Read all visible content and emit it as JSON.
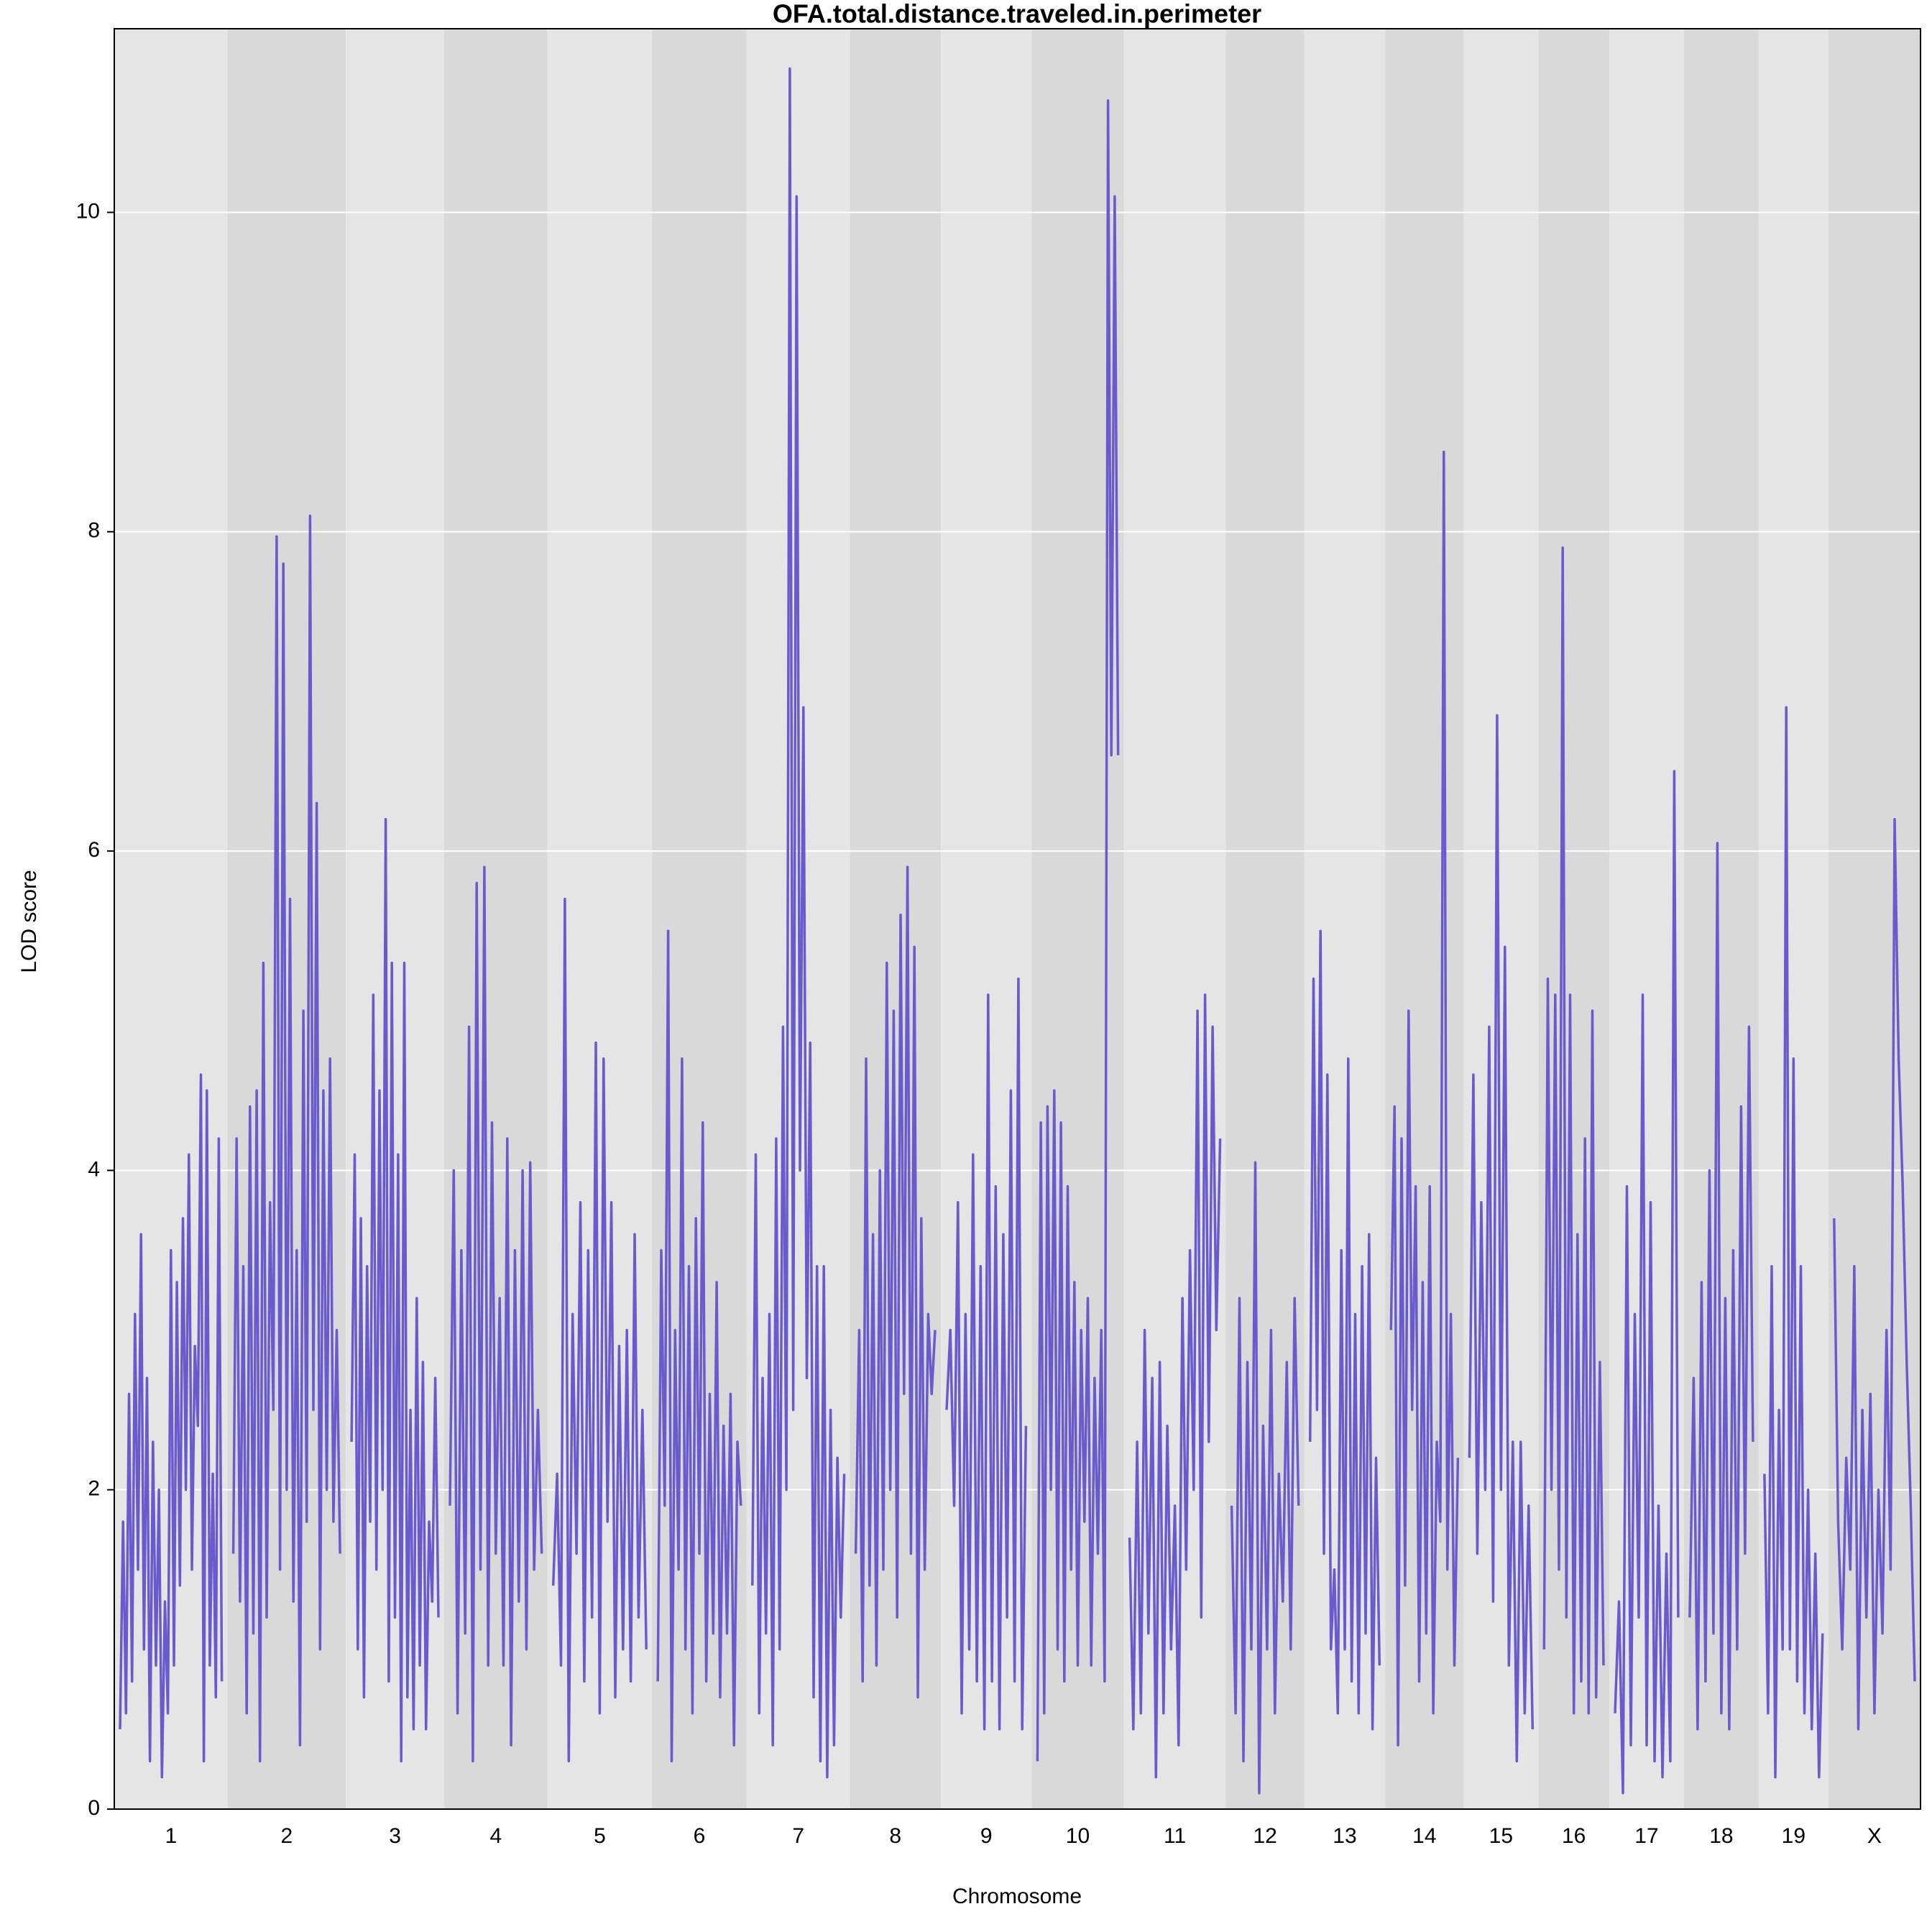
{
  "chart_data": {
    "type": "lod-scan",
    "title": "OFA.total.distance.traveled.in.perimeter",
    "xlabel": "Chromosome",
    "ylabel": "LOD score",
    "color": "#6a5acd",
    "grid": true,
    "ylim": [
      0,
      11.15
    ],
    "yticks": [
      0,
      2,
      4,
      6,
      8,
      10
    ],
    "chromosomes": [
      {
        "name": "1",
        "length": 91,
        "values": [
          0.5,
          1.8,
          0.6,
          2.6,
          0.8,
          3.1,
          1.5,
          3.6,
          1.0,
          2.7,
          0.3,
          2.3,
          0.9,
          2.0,
          0.2,
          1.3,
          0.6,
          3.5,
          0.9,
          3.3,
          1.4,
          3.7,
          2.0,
          4.1,
          1.5,
          2.9,
          2.4,
          4.6,
          0.3,
          4.5,
          0.9,
          2.1,
          0.7,
          4.2,
          0.8
        ]
      },
      {
        "name": "2",
        "length": 95,
        "values": [
          1.6,
          4.2,
          1.3,
          3.4,
          0.6,
          4.4,
          1.1,
          4.5,
          0.3,
          5.3,
          1.2,
          3.8,
          2.5,
          7.97,
          1.5,
          7.8,
          2.0,
          5.7,
          1.3,
          3.5,
          0.4,
          5.0,
          1.8,
          8.1,
          2.5,
          6.3,
          1.0,
          4.5,
          2.0,
          4.7,
          1.8,
          3.0,
          1.6
        ]
      },
      {
        "name": "3",
        "length": 79,
        "values": [
          2.3,
          4.1,
          1.0,
          3.7,
          0.7,
          3.4,
          1.8,
          5.1,
          1.5,
          4.5,
          2.0,
          6.2,
          0.8,
          5.3,
          1.2,
          4.1,
          0.3,
          5.3,
          0.7,
          2.5,
          0.5,
          3.2,
          0.9,
          2.8,
          0.5,
          1.8,
          1.3,
          2.7,
          1.2
        ]
      },
      {
        "name": "4",
        "length": 83,
        "values": [
          1.9,
          4.0,
          0.6,
          3.5,
          1.1,
          4.9,
          0.3,
          5.8,
          1.5,
          5.9,
          0.9,
          4.3,
          1.6,
          3.2,
          0.9,
          4.2,
          0.4,
          3.5,
          1.3,
          4.0,
          1.0,
          4.05,
          1.5,
          2.5,
          1.6
        ]
      },
      {
        "name": "5",
        "length": 84,
        "values": [
          1.4,
          2.1,
          0.9,
          5.7,
          0.3,
          3.1,
          1.6,
          3.8,
          0.8,
          3.5,
          1.2,
          4.8,
          0.6,
          4.7,
          1.8,
          3.8,
          0.7,
          2.9,
          1.0,
          3.0,
          0.8,
          3.6,
          1.2,
          2.5,
          1.0
        ]
      },
      {
        "name": "6",
        "length": 76,
        "values": [
          0.8,
          3.5,
          1.9,
          5.5,
          0.3,
          3.0,
          1.5,
          4.7,
          1.0,
          3.4,
          0.6,
          3.7,
          1.6,
          4.3,
          0.8,
          2.6,
          1.1,
          3.3,
          0.7,
          2.4,
          1.1,
          2.6,
          0.4,
          2.3,
          1.9
        ]
      },
      {
        "name": "7",
        "length": 83,
        "values": [
          1.4,
          4.1,
          0.6,
          2.7,
          1.1,
          3.1,
          0.4,
          4.2,
          1.0,
          4.9,
          2.0,
          10.9,
          2.5,
          10.1,
          4.0,
          6.9,
          2.7,
          4.8,
          0.7,
          3.4,
          0.3,
          3.4,
          0.2,
          2.5,
          0.4,
          2.2,
          1.2,
          2.1
        ]
      },
      {
        "name": "8",
        "length": 73,
        "values": [
          1.6,
          3.0,
          0.8,
          4.7,
          1.4,
          3.6,
          0.9,
          4.0,
          1.5,
          5.3,
          2.0,
          5.0,
          1.2,
          5.6,
          2.6,
          5.9,
          1.6,
          5.4,
          0.7,
          3.7,
          1.5,
          3.1,
          2.6,
          3.0
        ]
      },
      {
        "name": "9",
        "length": 73,
        "values": [
          2.5,
          3.0,
          1.9,
          3.8,
          0.6,
          3.1,
          1.0,
          4.1,
          0.8,
          3.4,
          0.5,
          5.1,
          0.8,
          3.9,
          0.5,
          3.6,
          1.2,
          4.5,
          0.8,
          5.2,
          0.5,
          2.4
        ]
      },
      {
        "name": "10",
        "length": 74,
        "values": [
          0.3,
          4.3,
          0.6,
          4.4,
          2.0,
          4.5,
          1.0,
          4.3,
          0.8,
          3.9,
          1.5,
          3.3,
          0.9,
          3.0,
          1.8,
          3.2,
          0.9,
          2.7,
          1.6,
          3.0,
          0.8,
          10.7,
          6.6,
          10.1,
          6.6
        ]
      },
      {
        "name": "11",
        "length": 82,
        "values": [
          1.7,
          0.5,
          2.3,
          0.6,
          3.0,
          1.1,
          2.7,
          0.2,
          2.8,
          0.6,
          2.4,
          1.0,
          1.9,
          0.4,
          3.2,
          1.5,
          3.5,
          2.0,
          5.0,
          1.2,
          5.1,
          2.3,
          4.9,
          3.0,
          4.2
        ]
      },
      {
        "name": "12",
        "length": 63,
        "values": [
          1.9,
          0.6,
          3.2,
          0.3,
          2.8,
          1.0,
          4.05,
          0.1,
          2.4,
          1.0,
          3.0,
          0.6,
          2.1,
          1.3,
          2.8,
          1.0,
          3.2,
          1.9
        ]
      },
      {
        "name": "13",
        "length": 65,
        "values": [
          2.3,
          5.2,
          2.5,
          5.5,
          1.6,
          4.6,
          1.0,
          1.5,
          0.6,
          3.5,
          1.0,
          4.7,
          0.8,
          3.1,
          0.6,
          3.4,
          1.1,
          3.6,
          0.5,
          2.2,
          0.9
        ]
      },
      {
        "name": "14",
        "length": 63,
        "values": [
          3.0,
          4.4,
          0.4,
          4.2,
          1.4,
          5.0,
          2.5,
          3.9,
          0.8,
          3.3,
          1.1,
          3.9,
          0.6,
          2.3,
          1.8,
          8.5,
          1.5,
          3.1,
          0.9,
          2.2
        ]
      },
      {
        "name": "15",
        "length": 60,
        "values": [
          2.2,
          4.6,
          1.6,
          3.8,
          2.0,
          4.9,
          1.3,
          6.85,
          2.0,
          5.4,
          0.9,
          2.3,
          0.3,
          2.3,
          0.6,
          1.9,
          0.5
        ]
      },
      {
        "name": "16",
        "length": 57,
        "values": [
          1.0,
          5.2,
          2.0,
          5.1,
          1.5,
          7.9,
          1.2,
          5.1,
          0.6,
          3.6,
          0.8,
          4.2,
          0.6,
          5.0,
          0.7,
          2.8,
          0.9
        ]
      },
      {
        "name": "17",
        "length": 60,
        "values": [
          0.6,
          1.3,
          0.1,
          3.9,
          0.4,
          3.1,
          1.2,
          5.1,
          0.4,
          3.8,
          0.3,
          1.9,
          0.2,
          1.6,
          0.3,
          6.5,
          1.2
        ]
      },
      {
        "name": "18",
        "length": 60,
        "values": [
          1.2,
          2.7,
          0.5,
          3.3,
          0.8,
          4.0,
          1.1,
          6.05,
          0.6,
          3.2,
          0.5,
          3.5,
          1.0,
          4.4,
          1.6,
          4.9,
          2.3
        ]
      },
      {
        "name": "19",
        "length": 56,
        "values": [
          2.1,
          0.6,
          3.4,
          0.2,
          2.5,
          1.0,
          6.9,
          1.0,
          4.7,
          0.8,
          3.4,
          0.6,
          2.0,
          0.5,
          1.6,
          0.2,
          1.1
        ]
      },
      {
        "name": "X",
        "length": 74,
        "values": [
          3.7,
          1.8,
          1.0,
          2.2,
          1.5,
          3.4,
          0.5,
          2.5,
          1.2,
          2.6,
          0.6,
          2.0,
          1.1,
          3.0,
          1.5,
          6.2,
          4.7,
          3.9,
          2.8,
          1.9,
          0.8
        ]
      }
    ]
  }
}
